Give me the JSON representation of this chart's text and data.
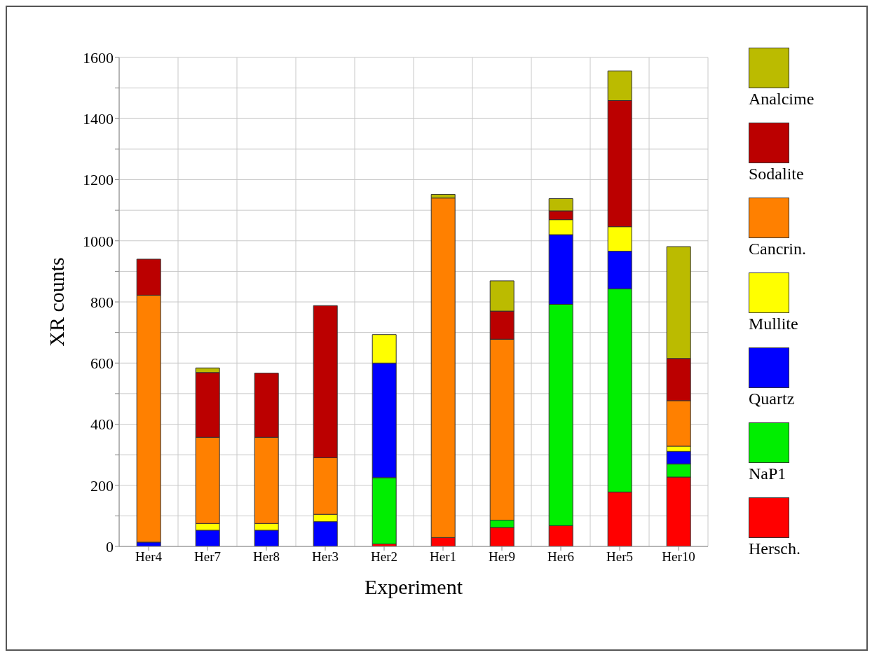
{
  "chart_data": {
    "type": "bar",
    "stacked": true,
    "xlabel": "Experiment",
    "ylabel": "XR counts",
    "categories": [
      "Her4",
      "Her7",
      "Her8",
      "Her3",
      "Her2",
      "Her1",
      "Her9",
      "Her6",
      "Her5",
      "Her10"
    ],
    "series": [
      {
        "name": "Hersch.",
        "color": "#ff0000",
        "values": [
          0,
          0,
          0,
          0,
          8,
          29,
          62,
          68,
          178,
          227
        ]
      },
      {
        "name": "NaP1",
        "color": "#00ee00",
        "values": [
          0,
          0,
          0,
          0,
          217,
          0,
          24,
          724,
          665,
          43
        ]
      },
      {
        "name": "Quartz",
        "color": "#0000ff",
        "values": [
          14,
          53,
          53,
          81,
          375,
          0,
          0,
          228,
          123,
          41
        ]
      },
      {
        "name": "Mullite",
        "color": "#ffff00",
        "values": [
          0,
          22,
          22,
          24,
          93,
          0,
          0,
          49,
          80,
          17
        ]
      },
      {
        "name": "Cancrin.",
        "color": "#ff8000",
        "values": [
          808,
          282,
          282,
          185,
          0,
          1111,
          592,
          0,
          0,
          149
        ]
      },
      {
        "name": "Sodalite",
        "color": "#bb0000",
        "values": [
          118,
          212,
          210,
          498,
          0,
          0,
          92,
          29,
          413,
          138
        ]
      },
      {
        "name": "Analcime",
        "color": "#bbbb00",
        "values": [
          0,
          15,
          0,
          0,
          0,
          12,
          99,
          40,
          97,
          366
        ]
      }
    ],
    "ylim": [
      0,
      1600
    ],
    "yticks": [
      0,
      {
        "value": 100,
        "label": null
      },
      200,
      {
        "value": 300,
        "label": null
      },
      400,
      {
        "value": 500,
        "label": null
      },
      600,
      {
        "value": 700,
        "label": null
      },
      800,
      {
        "value": 900,
        "label": null
      },
      1000,
      {
        "value": 1100,
        "label": null
      },
      1200,
      {
        "value": 1300,
        "label": null
      },
      1400,
      {
        "value": 1500,
        "label": null
      },
      1600
    ],
    "grid": true,
    "legend": "right"
  }
}
